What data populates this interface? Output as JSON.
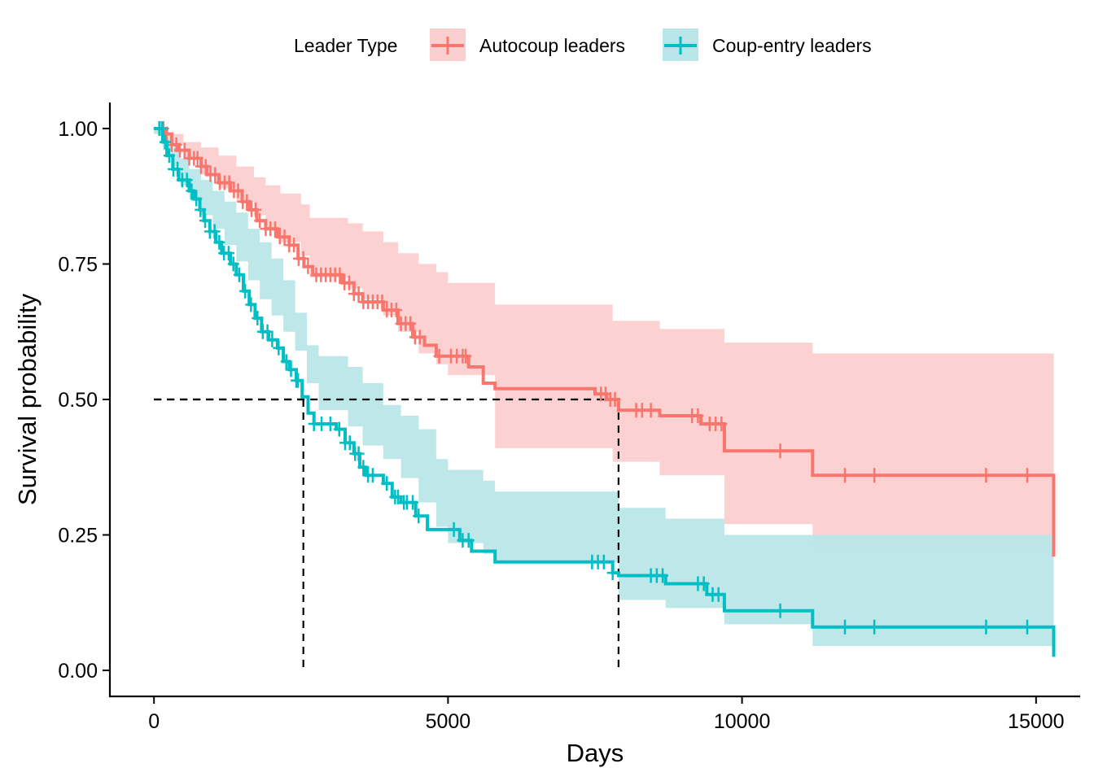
{
  "chart_data": {
    "type": "line",
    "subtype": "kaplan-meier step curve with confidence bands",
    "xlabel": "Days",
    "ylabel": "Survival probability",
    "xlim": [
      -750,
      15750
    ],
    "ylim": [
      -0.048,
      1.048
    ],
    "x_ticks": [
      0,
      5000,
      10000,
      15000
    ],
    "x_tick_labels": [
      "0",
      "5000",
      "10000",
      "15000"
    ],
    "y_ticks": [
      0,
      0.25,
      0.5,
      0.75,
      1.0
    ],
    "y_tick_labels": [
      "0.00",
      "0.25",
      "0.50",
      "0.75",
      "1.00"
    ],
    "grid": false,
    "legend": {
      "title": "Leader Type",
      "position": "top",
      "entries": [
        "Autocoup leaders",
        "Coup-entry leaders"
      ]
    },
    "median_lines": [
      {
        "series": "Coup-entry leaders",
        "x": 2540,
        "y": 0.5
      },
      {
        "series": "Autocoup leaders",
        "x": 7900,
        "y": 0.5
      }
    ],
    "series": [
      {
        "name": "Autocoup leaders",
        "color": "#F8766D",
        "band_color": "#FBCFCF",
        "steps": [
          [
            0,
            1.0
          ],
          [
            200,
            0.99
          ],
          [
            300,
            0.97
          ],
          [
            420,
            0.96
          ],
          [
            600,
            0.945
          ],
          [
            800,
            0.93
          ],
          [
            900,
            0.915
          ],
          [
            1100,
            0.9
          ],
          [
            1300,
            0.885
          ],
          [
            1500,
            0.865
          ],
          [
            1620,
            0.85
          ],
          [
            1750,
            0.83
          ],
          [
            1900,
            0.815
          ],
          [
            2100,
            0.8
          ],
          [
            2300,
            0.785
          ],
          [
            2450,
            0.76
          ],
          [
            2550,
            0.745
          ],
          [
            2700,
            0.73
          ],
          [
            3200,
            0.715
          ],
          [
            3400,
            0.695
          ],
          [
            3550,
            0.68
          ],
          [
            3900,
            0.665
          ],
          [
            4150,
            0.64
          ],
          [
            4400,
            0.615
          ],
          [
            4600,
            0.6
          ],
          [
            4800,
            0.58
          ],
          [
            5350,
            0.56
          ],
          [
            5600,
            0.53
          ],
          [
            5800,
            0.52
          ],
          [
            7500,
            0.51
          ],
          [
            7700,
            0.5
          ],
          [
            7900,
            0.48
          ],
          [
            8600,
            0.47
          ],
          [
            9300,
            0.455
          ],
          [
            9700,
            0.405
          ],
          [
            11200,
            0.36
          ],
          [
            15300,
            0.21
          ]
        ],
        "band_upper": [
          [
            0,
            1.0
          ],
          [
            250,
            0.99
          ],
          [
            500,
            0.975
          ],
          [
            800,
            0.965
          ],
          [
            1100,
            0.95
          ],
          [
            1400,
            0.93
          ],
          [
            1700,
            0.91
          ],
          [
            1900,
            0.895
          ],
          [
            2150,
            0.88
          ],
          [
            2500,
            0.86
          ],
          [
            2650,
            0.835
          ],
          [
            3300,
            0.825
          ],
          [
            3550,
            0.81
          ],
          [
            3900,
            0.79
          ],
          [
            4150,
            0.77
          ],
          [
            4500,
            0.75
          ],
          [
            4800,
            0.735
          ],
          [
            5000,
            0.715
          ],
          [
            5800,
            0.675
          ],
          [
            7800,
            0.645
          ],
          [
            8600,
            0.63
          ],
          [
            9700,
            0.605
          ],
          [
            11200,
            0.585
          ],
          [
            15300,
            0.585
          ]
        ],
        "band_lower": [
          [
            0,
            0.99
          ],
          [
            250,
            0.97
          ],
          [
            500,
            0.945
          ],
          [
            800,
            0.915
          ],
          [
            1100,
            0.89
          ],
          [
            1400,
            0.865
          ],
          [
            1700,
            0.84
          ],
          [
            1900,
            0.815
          ],
          [
            2150,
            0.79
          ],
          [
            2500,
            0.765
          ],
          [
            2650,
            0.725
          ],
          [
            3300,
            0.705
          ],
          [
            3550,
            0.685
          ],
          [
            3900,
            0.655
          ],
          [
            4150,
            0.625
          ],
          [
            4500,
            0.585
          ],
          [
            4800,
            0.565
          ],
          [
            5000,
            0.545
          ],
          [
            5800,
            0.41
          ],
          [
            7800,
            0.385
          ],
          [
            8600,
            0.36
          ],
          [
            9700,
            0.27
          ],
          [
            11200,
            0.225
          ],
          [
            15300,
            0.225
          ]
        ],
        "censor_times": [
          100,
          160,
          220,
          300,
          380,
          440,
          520,
          600,
          680,
          740,
          800,
          880,
          960,
          1040,
          1120,
          1200,
          1280,
          1360,
          1430,
          1510,
          1580,
          1660,
          1730,
          1800,
          1900,
          1980,
          2060,
          2140,
          2220,
          2300,
          2380,
          2460,
          2540,
          2620,
          2760,
          2840,
          2920,
          3000,
          3080,
          3160,
          3240,
          3320,
          3400,
          3480,
          3560,
          3640,
          3720,
          3800,
          3880,
          3960,
          4040,
          4120,
          4200,
          4280,
          4360,
          4440,
          4520,
          4850,
          5050,
          5150,
          5250,
          5300,
          7600,
          7680,
          7760,
          7840,
          8200,
          8300,
          8450,
          9150,
          9250,
          9450,
          9550,
          9650,
          10650,
          11750,
          12250,
          14150,
          14850
        ]
      },
      {
        "name": "Coup-entry leaders",
        "color": "#00BFC4",
        "band_color": "#BAE6E9",
        "steps": [
          [
            0,
            1.0
          ],
          [
            150,
            0.975
          ],
          [
            220,
            0.95
          ],
          [
            320,
            0.925
          ],
          [
            420,
            0.905
          ],
          [
            600,
            0.885
          ],
          [
            680,
            0.87
          ],
          [
            780,
            0.85
          ],
          [
            850,
            0.83
          ],
          [
            950,
            0.81
          ],
          [
            1050,
            0.79
          ],
          [
            1150,
            0.77
          ],
          [
            1300,
            0.75
          ],
          [
            1400,
            0.73
          ],
          [
            1520,
            0.7
          ],
          [
            1620,
            0.675
          ],
          [
            1720,
            0.65
          ],
          [
            1830,
            0.625
          ],
          [
            1950,
            0.61
          ],
          [
            2100,
            0.595
          ],
          [
            2200,
            0.57
          ],
          [
            2300,
            0.555
          ],
          [
            2420,
            0.535
          ],
          [
            2520,
            0.505
          ],
          [
            2620,
            0.475
          ],
          [
            2720,
            0.455
          ],
          [
            3100,
            0.445
          ],
          [
            3250,
            0.42
          ],
          [
            3400,
            0.4
          ],
          [
            3500,
            0.375
          ],
          [
            3600,
            0.36
          ],
          [
            3900,
            0.345
          ],
          [
            4050,
            0.32
          ],
          [
            4200,
            0.31
          ],
          [
            4450,
            0.285
          ],
          [
            4650,
            0.26
          ],
          [
            5200,
            0.24
          ],
          [
            5400,
            0.22
          ],
          [
            5800,
            0.2
          ],
          [
            7800,
            0.18
          ],
          [
            7900,
            0.175
          ],
          [
            8700,
            0.16
          ],
          [
            9400,
            0.14
          ],
          [
            9700,
            0.11
          ],
          [
            11200,
            0.08
          ],
          [
            15300,
            0.025
          ]
        ],
        "band_upper": [
          [
            0,
            1.0
          ],
          [
            150,
            0.98
          ],
          [
            300,
            0.965
          ],
          [
            450,
            0.945
          ],
          [
            600,
            0.925
          ],
          [
            800,
            0.905
          ],
          [
            1000,
            0.885
          ],
          [
            1200,
            0.865
          ],
          [
            1400,
            0.845
          ],
          [
            1600,
            0.815
          ],
          [
            1800,
            0.79
          ],
          [
            2000,
            0.76
          ],
          [
            2200,
            0.72
          ],
          [
            2400,
            0.66
          ],
          [
            2600,
            0.6
          ],
          [
            2800,
            0.58
          ],
          [
            3300,
            0.56
          ],
          [
            3550,
            0.53
          ],
          [
            3900,
            0.49
          ],
          [
            4200,
            0.47
          ],
          [
            4500,
            0.445
          ],
          [
            4800,
            0.39
          ],
          [
            5000,
            0.37
          ],
          [
            5600,
            0.35
          ],
          [
            5800,
            0.33
          ],
          [
            7900,
            0.3
          ],
          [
            8700,
            0.28
          ],
          [
            9700,
            0.25
          ],
          [
            11200,
            0.25
          ],
          [
            15300,
            0.25
          ]
        ],
        "band_lower": [
          [
            0,
            0.99
          ],
          [
            150,
            0.96
          ],
          [
            300,
            0.93
          ],
          [
            450,
            0.895
          ],
          [
            600,
            0.87
          ],
          [
            800,
            0.84
          ],
          [
            1000,
            0.815
          ],
          [
            1200,
            0.785
          ],
          [
            1400,
            0.755
          ],
          [
            1600,
            0.72
          ],
          [
            1800,
            0.685
          ],
          [
            2000,
            0.655
          ],
          [
            2200,
            0.625
          ],
          [
            2400,
            0.59
          ],
          [
            2600,
            0.53
          ],
          [
            2800,
            0.48
          ],
          [
            3300,
            0.45
          ],
          [
            3550,
            0.415
          ],
          [
            3900,
            0.39
          ],
          [
            4200,
            0.355
          ],
          [
            4500,
            0.31
          ],
          [
            4800,
            0.265
          ],
          [
            5000,
            0.235
          ],
          [
            5600,
            0.215
          ],
          [
            5800,
            0.2
          ],
          [
            7900,
            0.13
          ],
          [
            8700,
            0.115
          ],
          [
            9700,
            0.085
          ],
          [
            11200,
            0.045
          ],
          [
            15300,
            0.03
          ]
        ]
      }
    ]
  }
}
